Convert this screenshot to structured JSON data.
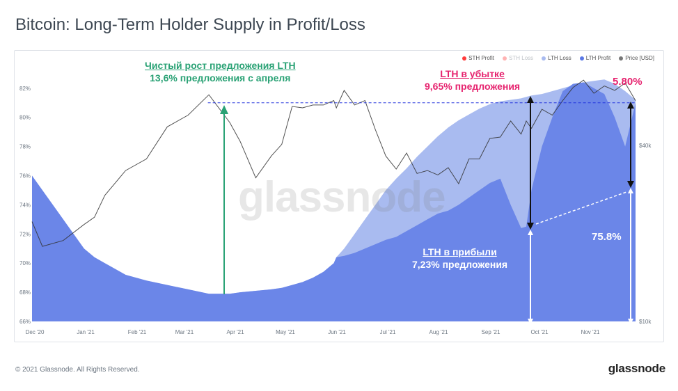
{
  "title": "Bitcoin: Long-Term Holder Supply in Profit/Loss",
  "legend": [
    {
      "label": "STH Profit",
      "color": "#ff3b3b",
      "faded": true
    },
    {
      "label": "STH Loss",
      "color": "#ffb3b3",
      "faded": true
    },
    {
      "label": "LTH Loss",
      "color": "#a9bbf0",
      "faded": false
    },
    {
      "label": "LTH Profit",
      "color": "#5a78e6",
      "faded": false
    },
    {
      "label": "Price [USD]",
      "color": "#777777",
      "faded": false
    }
  ],
  "annotations": {
    "net_growth_title": "Чистый рост предложения LTH",
    "net_growth_value": "13,6% предложения с апреля",
    "loss_title": "LTH в убытке",
    "loss_value": "9,65% предложения",
    "loss_pct": "5.80%",
    "profit_title": "LTH в прибыли",
    "profit_value": "7,23% предложения",
    "profit_pct": "75.8%"
  },
  "watermark": "glassnode",
  "footer": {
    "copyright": "© 2021 Glassnode. All Rights Reserved.",
    "logo": "glassnode"
  },
  "chart_data": {
    "type": "area",
    "x_ticks": [
      "Dec '20",
      "Jan '21",
      "Feb '21",
      "Mar '21",
      "Apr '21",
      "May '21",
      "Jun '21",
      "Jul '21",
      "Aug '21",
      "Sep '21",
      "Oct '21",
      "Nov '21"
    ],
    "y_left_ticks": [
      "66%",
      "68%",
      "70%",
      "72%",
      "74%",
      "76%",
      "78%",
      "80%",
      "82%"
    ],
    "y_left_range": [
      66,
      82.8
    ],
    "y_right_ticks": [
      "$40k",
      "$10k"
    ],
    "y_right_scale": "log",
    "t": [
      0,
      0.2,
      0.6,
      1.0,
      1.2,
      1.4,
      1.8,
      2.2,
      2.6,
      3.0,
      3.4,
      3.8,
      4.0,
      4.3,
      4.6,
      4.8,
      5.0,
      5.2,
      5.4,
      5.6,
      5.8,
      5.85,
      6.0,
      6.2,
      6.4,
      6.6,
      6.8,
      7.0,
      7.2,
      7.4,
      7.6,
      7.8,
      8.0,
      8.2,
      8.4,
      8.6,
      8.8,
      9.0,
      9.2,
      9.4,
      9.5,
      9.6,
      9.8,
      10.0,
      10.2,
      10.4,
      10.6,
      10.8,
      11.0,
      11.2,
      11.4,
      11.6
    ],
    "series": [
      {
        "name": "LTH Loss",
        "color": "#a9bbf0",
        "values": [
          76.0,
          75.0,
          73.0,
          71.0,
          70.4,
          70.0,
          69.2,
          68.8,
          68.5,
          68.2,
          67.9,
          67.9,
          68.0,
          68.1,
          68.2,
          68.3,
          68.5,
          68.7,
          69.0,
          69.4,
          70.0,
          70.4,
          71.0,
          72.0,
          73.0,
          74.0,
          75.0,
          75.8,
          76.5,
          77.3,
          78.0,
          78.7,
          79.3,
          79.8,
          80.2,
          80.6,
          80.9,
          81.1,
          81.2,
          81.3,
          81.4,
          81.5,
          81.6,
          81.8,
          82.0,
          82.2,
          82.4,
          82.5,
          82.6,
          82.3,
          81.8,
          81.2
        ]
      },
      {
        "name": "LTH Profit",
        "color": "#6b86e8",
        "values": [
          76.0,
          75.0,
          73.0,
          71.0,
          70.4,
          70.0,
          69.2,
          68.8,
          68.5,
          68.2,
          67.9,
          67.9,
          68.0,
          68.1,
          68.2,
          68.3,
          68.5,
          68.7,
          69.0,
          69.4,
          70.0,
          70.4,
          70.5,
          70.7,
          71.0,
          71.3,
          71.6,
          71.8,
          72.2,
          72.6,
          73.0,
          73.4,
          73.6,
          74.0,
          74.5,
          75.0,
          75.5,
          75.8,
          74.0,
          72.4,
          72.5,
          75.0,
          78.0,
          80.0,
          81.8,
          82.3,
          82.4,
          82.0,
          81.6,
          80.0,
          78.0,
          81.0
        ]
      },
      {
        "name": "Price [USD]",
        "color": "#777777",
        "values": [
          72.5,
          71.5,
          71.2,
          73.0,
          72.8,
          75.0,
          76.0,
          77.5,
          79.0,
          80.5,
          81.2,
          80.0,
          78.0,
          76.2,
          77.0,
          78.5,
          80.4,
          81.0,
          80.5,
          81.2,
          80.8,
          81.0,
          81.5,
          81.2,
          80.8,
          79.5,
          77.0,
          76.8,
          77.2,
          76.5,
          76.0,
          76.4,
          76.2,
          75.8,
          76.8,
          77.5,
          78.2,
          79.0,
          79.4,
          79.2,
          79.4,
          79.6,
          80.2,
          80.5,
          80.8,
          82.4,
          82.2,
          82.0,
          81.8,
          82.2,
          82.0,
          81.5
        ]
      }
    ],
    "reference_line": {
      "label": "dashed",
      "y": 81.0
    },
    "grid": false
  }
}
